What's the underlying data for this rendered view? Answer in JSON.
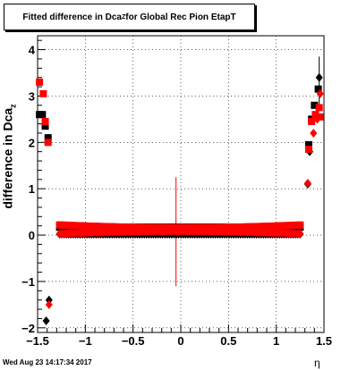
{
  "chart_data": {
    "type": "scatter",
    "title_main": "Fitted difference in Dca",
    "title_sub": "Z",
    "title_tail": " for Global Rec Pion EtapT",
    "ylabel_main": "difference in Dca",
    "ylabel_sub": "z",
    "xlabel": "η",
    "timestamp": "Wed Aug 23 14:17:34 2017",
    "xlim": [
      -1.5,
      1.5
    ],
    "ylim": [
      -2.1,
      4.3
    ],
    "grid": true,
    "x_ticks": [
      -1.5,
      -1,
      -0.5,
      0,
      0.5,
      1,
      1.5
    ],
    "x_tick_labels": [
      "−1.5",
      "−1",
      "−0.5",
      "0",
      "0.5",
      "1",
      "1.5"
    ],
    "y_ticks": [
      -2,
      -1,
      0,
      1,
      2,
      3,
      4
    ],
    "y_tick_labels": [
      "−2",
      "−1",
      "0",
      "1",
      "2",
      "3",
      "4"
    ],
    "series": [
      {
        "color": "#000000",
        "points": [
          {
            "x": -1.48,
            "y": 2.6,
            "m": "square"
          },
          {
            "x": -1.45,
            "y": 2.6,
            "m": "square"
          },
          {
            "x": -1.42,
            "y": 2.35,
            "m": "square"
          },
          {
            "x": -1.39,
            "y": 2.1,
            "m": "square"
          },
          {
            "x": -1.38,
            "y": -1.4,
            "m": "diamond"
          },
          {
            "x": -1.41,
            "y": -1.85,
            "m": "diamond"
          },
          {
            "x": 1.33,
            "y": 1.1,
            "m": "diamond"
          },
          {
            "x": 1.35,
            "y": 1.8,
            "m": "diamond"
          },
          {
            "x": 1.34,
            "y": 1.95,
            "m": "square"
          },
          {
            "x": 1.37,
            "y": 2.5,
            "m": "square"
          },
          {
            "x": 1.4,
            "y": 2.8,
            "m": "square"
          },
          {
            "x": 1.44,
            "y": 3.15,
            "m": "square"
          },
          {
            "x": 1.45,
            "y": 3.4,
            "m": "diamond"
          }
        ]
      },
      {
        "color": "#ff0000",
        "points": [
          {
            "x": -1.48,
            "y": 3.3,
            "m": "square"
          },
          {
            "x": -1.44,
            "y": 3.05,
            "m": "square"
          },
          {
            "x": -1.42,
            "y": 2.45,
            "m": "square"
          },
          {
            "x": -1.39,
            "y": 2.0,
            "m": "square"
          },
          {
            "x": -1.38,
            "y": -1.5,
            "m": "diamond"
          },
          {
            "x": 1.33,
            "y": 1.12,
            "m": "diamond"
          },
          {
            "x": 1.34,
            "y": 1.85,
            "m": "square"
          },
          {
            "x": 1.37,
            "y": 2.45,
            "m": "square"
          },
          {
            "x": 1.39,
            "y": 2.2,
            "m": "diamond"
          },
          {
            "x": 1.41,
            "y": 2.6,
            "m": "square"
          },
          {
            "x": 1.43,
            "y": 2.5,
            "m": "diamond"
          },
          {
            "x": 1.45,
            "y": 2.75,
            "m": "square"
          },
          {
            "x": 1.46,
            "y": 2.55,
            "m": "square"
          },
          {
            "x": 1.46,
            "y": 3.05,
            "m": "diamond"
          }
        ]
      }
    ],
    "dense_band": {
      "x_start": -1.27,
      "x_end": 1.27,
      "step": 0.024,
      "black_square_y": 0.17,
      "red_square_y_center": 0.16,
      "red_square_y_edge": 0.22,
      "black_diamond_y": 0.02,
      "red_diamond_y_center": 0.08,
      "red_diamond_y_edge": 0.03
    },
    "error_bars": [
      {
        "x": -0.05,
        "y_low": -1.1,
        "y_high": 1.25,
        "color": "#ff0000"
      },
      {
        "x": 1.45,
        "y_low": 2.7,
        "y_high": 3.85,
        "color": "#000000"
      }
    ]
  }
}
